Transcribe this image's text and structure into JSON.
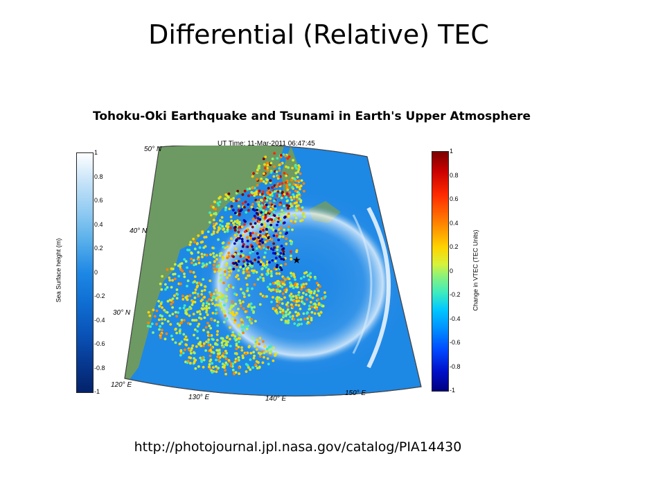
{
  "slide": {
    "title": "Differential (Relative) TEC",
    "figure_title": "Tohoku-Oki Earthquake and Tsunami in Earth's Upper Atmosphere",
    "source_url": "http://photojournal.jpl.nasa.gov/catalog/PIA14430"
  },
  "map": {
    "time_label": "UT Time: 11-Mar-2011 06:47:45",
    "latitude_labels": [
      "50° N",
      "40° N",
      "30° N"
    ],
    "longitude_labels": [
      "120° E",
      "130° E",
      "140° E",
      "150° E"
    ],
    "epicenter_marker": "★"
  },
  "colorbar_left": {
    "label": "Sea Surface height (m)",
    "ticks": [
      "1",
      "0.8",
      "0.6",
      "0.4",
      "0.2",
      "0",
      "-0.2",
      "-0.4",
      "-0.6",
      "-0.8",
      "-1"
    ]
  },
  "colorbar_right": {
    "label": "Change in VTEC (TEC Units)",
    "ticks": [
      "1",
      "0.8",
      "0.6",
      "0.4",
      "0.2",
      "0",
      "-0.2",
      "-0.4",
      "-0.6",
      "-0.8",
      "-1"
    ]
  },
  "colors": {
    "ocean": "#1e88e5",
    "land": "#6d9a62",
    "wave_front": "#e8f2ff"
  }
}
